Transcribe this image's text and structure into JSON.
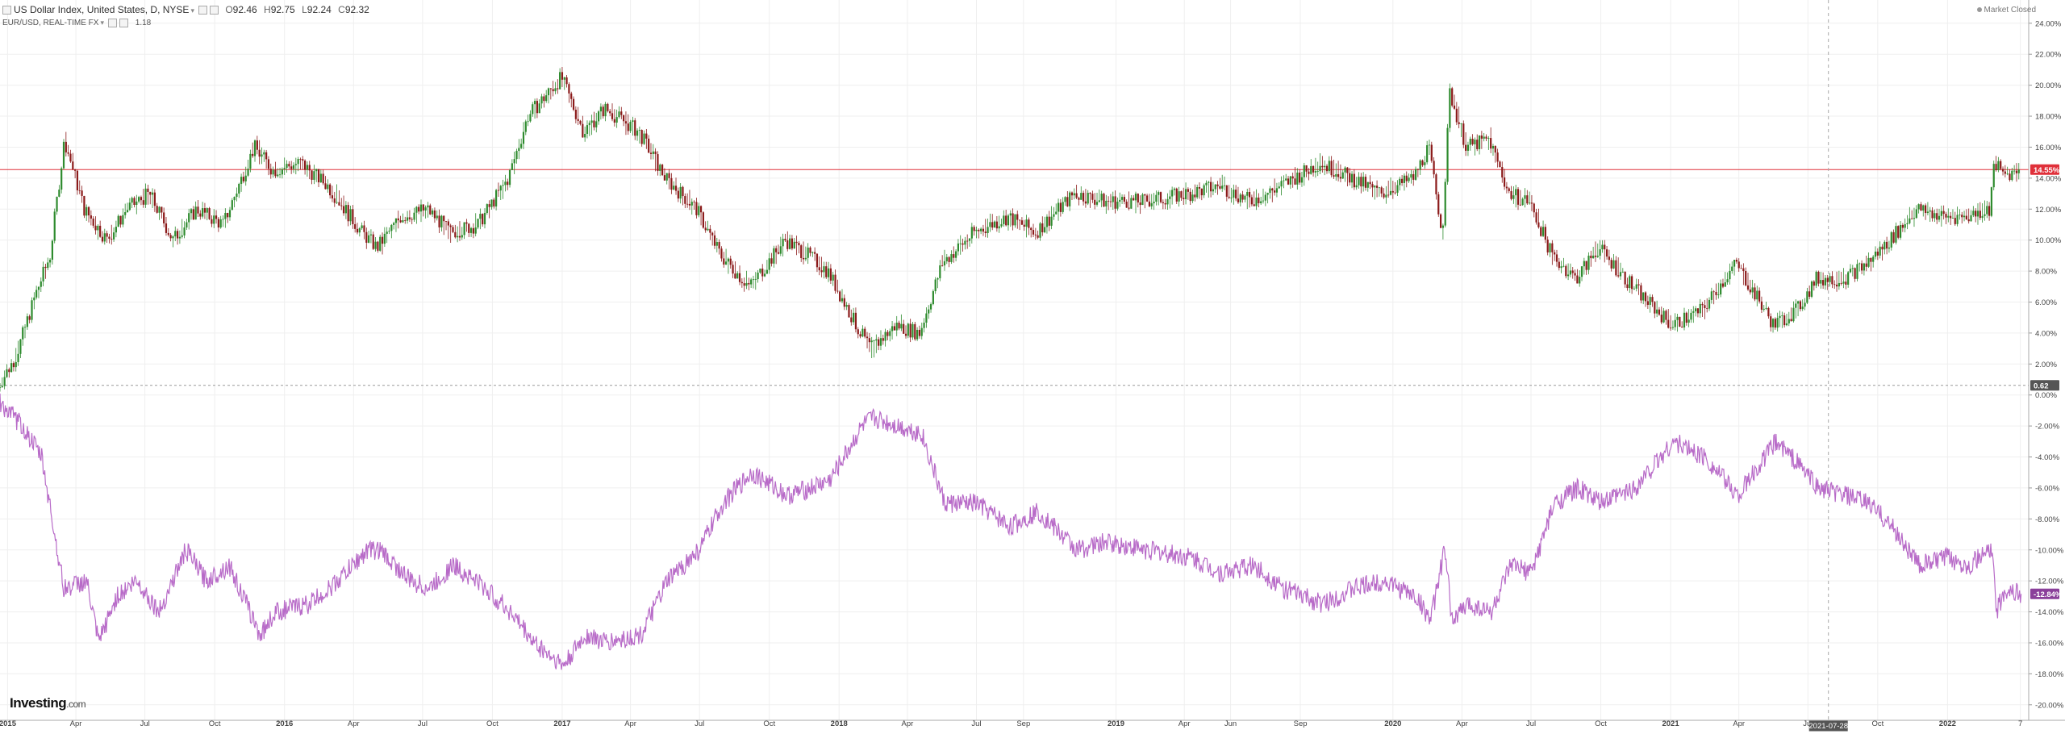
{
  "header": {
    "title": "US Dollar Index, United States, D, NYSE",
    "ohlc": {
      "open": "92.46",
      "high": "92.75",
      "low": "92.24",
      "close": "92.32"
    },
    "ohlc_prefixes": {
      "open": "O",
      "high": "H",
      "low": "L",
      "close": "C"
    },
    "compare_title": "EUR/USD, REAL-TIME FX",
    "compare_value": "1.18",
    "market_status": "Market Closed"
  },
  "logo": {
    "text": "Investing",
    "suffix": ".com"
  },
  "crosshair": {
    "date_label": "2021-07-28"
  },
  "colors": {
    "up": "#2e8b2e",
    "down": "#8b1a1a",
    "compare_line": "#b86bc8",
    "zero_line": "#999999",
    "last_price_line": "#e0303a",
    "last_price_badge": "#e0303a",
    "compare_badge": "#8a3f9a",
    "zero_badge": "#555555"
  },
  "chart_data": {
    "type": "line",
    "title": "US Dollar Index, United States, D, NYSE",
    "y_axis_unit": "%",
    "ylim": [
      -21,
      25.5
    ],
    "y_ticks": [
      "24.00%",
      "22.00%",
      "20.00%",
      "18.00%",
      "16.00%",
      "14.00%",
      "12.00%",
      "10.00%",
      "8.00%",
      "6.00%",
      "4.00%",
      "2.00%",
      "0.00%",
      "-2.00%",
      "-4.00%",
      "-6.00%",
      "-8.00%",
      "-10.00%",
      "-12.00%",
      "-14.00%",
      "-16.00%",
      "-18.00%",
      "-20.00%"
    ],
    "x_range": [
      "2014-12-22",
      "2022-04-18"
    ],
    "x_ticks": [
      {
        "label": "2015",
        "date": "2015-01-01"
      },
      {
        "label": "Apr",
        "date": "2015-04-01"
      },
      {
        "label": "Jul",
        "date": "2015-07-01"
      },
      {
        "label": "Oct",
        "date": "2015-10-01"
      },
      {
        "label": "2016",
        "date": "2016-01-01"
      },
      {
        "label": "Apr",
        "date": "2016-04-01"
      },
      {
        "label": "Jul",
        "date": "2016-07-01"
      },
      {
        "label": "Oct",
        "date": "2016-10-01"
      },
      {
        "label": "2017",
        "date": "2017-01-01"
      },
      {
        "label": "Apr",
        "date": "2017-04-01"
      },
      {
        "label": "Jul",
        "date": "2017-07-01"
      },
      {
        "label": "Oct",
        "date": "2017-10-01"
      },
      {
        "label": "2018",
        "date": "2018-01-01"
      },
      {
        "label": "Apr",
        "date": "2018-04-01"
      },
      {
        "label": "Jul",
        "date": "2018-07-01"
      },
      {
        "label": "Sep",
        "date": "2018-09-01"
      },
      {
        "label": "2019",
        "date": "2019-01-01"
      },
      {
        "label": "Apr",
        "date": "2019-04-01"
      },
      {
        "label": "Jun",
        "date": "2019-06-01"
      },
      {
        "label": "Sep",
        "date": "2019-09-01"
      },
      {
        "label": "2020",
        "date": "2020-01-01"
      },
      {
        "label": "Apr",
        "date": "2020-04-01"
      },
      {
        "label": "Jul",
        "date": "2020-07-01"
      },
      {
        "label": "Oct",
        "date": "2020-10-01"
      },
      {
        "label": "2021",
        "date": "2021-01-01"
      },
      {
        "label": "Apr",
        "date": "2021-04-01"
      },
      {
        "label": "Jul",
        "date": "2021-07-01"
      },
      {
        "label": "Oct",
        "date": "2021-10-01"
      },
      {
        "label": "2022",
        "date": "2022-01-01"
      },
      {
        "label": "7",
        "date": "2022-04-07"
      }
    ],
    "grid": true,
    "series": [
      {
        "name": "US Dollar Index",
        "style": "candlestick",
        "points": [
          [
            "2014-12-22",
            0.5
          ],
          [
            "2015-01-15",
            2.5
          ],
          [
            "2015-02-10",
            6.5
          ],
          [
            "2015-03-01",
            9
          ],
          [
            "2015-03-20",
            16.5
          ],
          [
            "2015-04-15",
            12
          ],
          [
            "2015-05-15",
            10
          ],
          [
            "2015-06-10",
            12
          ],
          [
            "2015-07-10",
            13
          ],
          [
            "2015-08-10",
            10
          ],
          [
            "2015-09-10",
            12
          ],
          [
            "2015-10-15",
            11
          ],
          [
            "2015-11-25",
            16
          ],
          [
            "2015-12-20",
            14.5
          ],
          [
            "2016-01-25",
            15
          ],
          [
            "2016-03-01",
            13.5
          ],
          [
            "2016-04-15",
            10.5
          ],
          [
            "2016-05-05",
            9.5
          ],
          [
            "2016-06-05",
            11.5
          ],
          [
            "2016-07-10",
            12
          ],
          [
            "2016-08-10",
            10.5
          ],
          [
            "2016-09-15",
            11
          ],
          [
            "2016-10-25",
            14
          ],
          [
            "2016-11-20",
            18
          ],
          [
            "2017-01-03",
            20.5
          ],
          [
            "2017-02-01",
            17
          ],
          [
            "2017-03-01",
            18.5
          ],
          [
            "2017-04-15",
            17
          ],
          [
            "2017-05-20",
            14
          ],
          [
            "2017-06-30",
            12
          ],
          [
            "2017-08-01",
            9
          ],
          [
            "2017-09-08",
            7
          ],
          [
            "2017-10-25",
            10
          ],
          [
            "2017-11-25",
            9
          ],
          [
            "2017-12-20",
            8
          ],
          [
            "2018-02-01",
            4
          ],
          [
            "2018-02-15",
            3
          ],
          [
            "2018-03-20",
            4.5
          ],
          [
            "2018-04-20",
            4
          ],
          [
            "2018-05-20",
            8.5
          ],
          [
            "2018-07-01",
            10.5
          ],
          [
            "2018-08-15",
            11.5
          ],
          [
            "2018-09-20",
            10.5
          ],
          [
            "2018-11-10",
            13
          ],
          [
            "2018-12-20",
            12.5
          ],
          [
            "2019-02-10",
            12.5
          ],
          [
            "2019-04-10",
            13
          ],
          [
            "2019-05-20",
            13.5
          ],
          [
            "2019-07-01",
            12.5
          ],
          [
            "2019-08-10",
            13.5
          ],
          [
            "2019-09-30",
            15
          ],
          [
            "2019-11-10",
            14
          ],
          [
            "2019-12-20",
            13
          ],
          [
            "2020-01-31",
            14
          ],
          [
            "2020-02-20",
            16
          ],
          [
            "2020-03-09",
            10.5
          ],
          [
            "2020-03-19",
            19.5
          ],
          [
            "2020-04-10",
            16
          ],
          [
            "2020-05-10",
            16.5
          ],
          [
            "2020-06-05",
            13
          ],
          [
            "2020-07-01",
            12.5
          ],
          [
            "2020-08-01",
            9
          ],
          [
            "2020-09-01",
            7.5
          ],
          [
            "2020-10-01",
            9.5
          ],
          [
            "2020-11-15",
            7
          ],
          [
            "2021-01-05",
            4.5
          ],
          [
            "2021-02-15",
            5.5
          ],
          [
            "2021-03-31",
            8.5
          ],
          [
            "2021-05-20",
            4.5
          ],
          [
            "2021-06-20",
            5.5
          ],
          [
            "2021-07-15",
            7.5
          ],
          [
            "2021-08-20",
            7.5
          ],
          [
            "2021-09-20",
            8.5
          ],
          [
            "2021-10-20",
            10
          ],
          [
            "2021-11-25",
            12
          ],
          [
            "2021-12-31",
            11.5
          ],
          [
            "2022-01-28",
            11.5
          ],
          [
            "2022-02-28",
            12
          ],
          [
            "2022-03-07",
            15
          ],
          [
            "2022-03-18",
            14.2
          ],
          [
            "2022-04-08",
            14.55
          ]
        ],
        "last_value_label": "14.55%"
      },
      {
        "name": "EUR/USD",
        "style": "line",
        "points": [
          [
            "2014-12-22",
            -0.5
          ],
          [
            "2015-01-20",
            -2
          ],
          [
            "2015-02-15",
            -4
          ],
          [
            "2015-03-16",
            -12.5
          ],
          [
            "2015-04-15",
            -12
          ],
          [
            "2015-05-01",
            -16
          ],
          [
            "2015-05-25",
            -13
          ],
          [
            "2015-06-20",
            -12
          ],
          [
            "2015-07-20",
            -14
          ],
          [
            "2015-08-24",
            -10
          ],
          [
            "2015-09-20",
            -12
          ],
          [
            "2015-10-20",
            -11
          ],
          [
            "2015-11-30",
            -15.5
          ],
          [
            "2015-12-20",
            -14
          ],
          [
            "2016-02-01",
            -13.5
          ],
          [
            "2016-03-01",
            -12.5
          ],
          [
            "2016-04-20",
            -10
          ],
          [
            "2016-05-05",
            -10
          ],
          [
            "2016-06-15",
            -12
          ],
          [
            "2016-07-10",
            -12.5
          ],
          [
            "2016-08-10",
            -11
          ],
          [
            "2016-09-10",
            -12
          ],
          [
            "2016-10-25",
            -14
          ],
          [
            "2016-11-25",
            -16
          ],
          [
            "2017-01-03",
            -17.5
          ],
          [
            "2017-02-01",
            -15.5
          ],
          [
            "2017-03-01",
            -16
          ],
          [
            "2017-04-15",
            -15.5
          ],
          [
            "2017-05-20",
            -12
          ],
          [
            "2017-07-01",
            -10
          ],
          [
            "2017-08-01",
            -7
          ],
          [
            "2017-09-08",
            -5
          ],
          [
            "2017-10-25",
            -6.5
          ],
          [
            "2017-11-25",
            -6
          ],
          [
            "2017-12-20",
            -5.5
          ],
          [
            "2018-02-01",
            -2
          ],
          [
            "2018-02-15",
            -1.5
          ],
          [
            "2018-03-20",
            -2
          ],
          [
            "2018-04-20",
            -2.5
          ],
          [
            "2018-05-20",
            -7
          ],
          [
            "2018-07-01",
            -7
          ],
          [
            "2018-08-15",
            -8.5
          ],
          [
            "2018-09-20",
            -7.5
          ],
          [
            "2018-11-10",
            -10
          ],
          [
            "2018-12-20",
            -9.5
          ],
          [
            "2019-02-10",
            -10
          ],
          [
            "2019-04-10",
            -10.5
          ],
          [
            "2019-05-20",
            -11.5
          ],
          [
            "2019-07-01",
            -11
          ],
          [
            "2019-08-10",
            -12.5
          ],
          [
            "2019-09-30",
            -13.5
          ],
          [
            "2019-11-10",
            -12.5
          ],
          [
            "2019-12-20",
            -12
          ],
          [
            "2020-01-31",
            -13
          ],
          [
            "2020-02-20",
            -14.5
          ],
          [
            "2020-03-09",
            -10
          ],
          [
            "2020-03-19",
            -14.5
          ],
          [
            "2020-04-10",
            -13.5
          ],
          [
            "2020-05-10",
            -14
          ],
          [
            "2020-06-05",
            -11
          ],
          [
            "2020-07-01",
            -11.5
          ],
          [
            "2020-08-01",
            -7
          ],
          [
            "2020-09-01",
            -6
          ],
          [
            "2020-10-01",
            -7
          ],
          [
            "2020-11-15",
            -6
          ],
          [
            "2021-01-05",
            -3
          ],
          [
            "2021-02-15",
            -4
          ],
          [
            "2021-03-31",
            -6.5
          ],
          [
            "2021-05-20",
            -3
          ],
          [
            "2021-06-20",
            -4.5
          ],
          [
            "2021-07-15",
            -6
          ],
          [
            "2021-08-20",
            -6.5
          ],
          [
            "2021-09-20",
            -7
          ],
          [
            "2021-10-20",
            -8.5
          ],
          [
            "2021-11-25",
            -11
          ],
          [
            "2021-12-31",
            -10.5
          ],
          [
            "2022-01-28",
            -11
          ],
          [
            "2022-02-28",
            -10
          ],
          [
            "2022-03-07",
            -14
          ],
          [
            "2022-03-18",
            -12.5
          ],
          [
            "2022-04-08",
            -12.84
          ]
        ],
        "last_value_label": "-12.84%"
      }
    ],
    "reference_lines": [
      {
        "name": "start level",
        "value": 0.62,
        "label": "0.62"
      },
      {
        "name": "last price",
        "value": 14.55
      }
    ]
  }
}
